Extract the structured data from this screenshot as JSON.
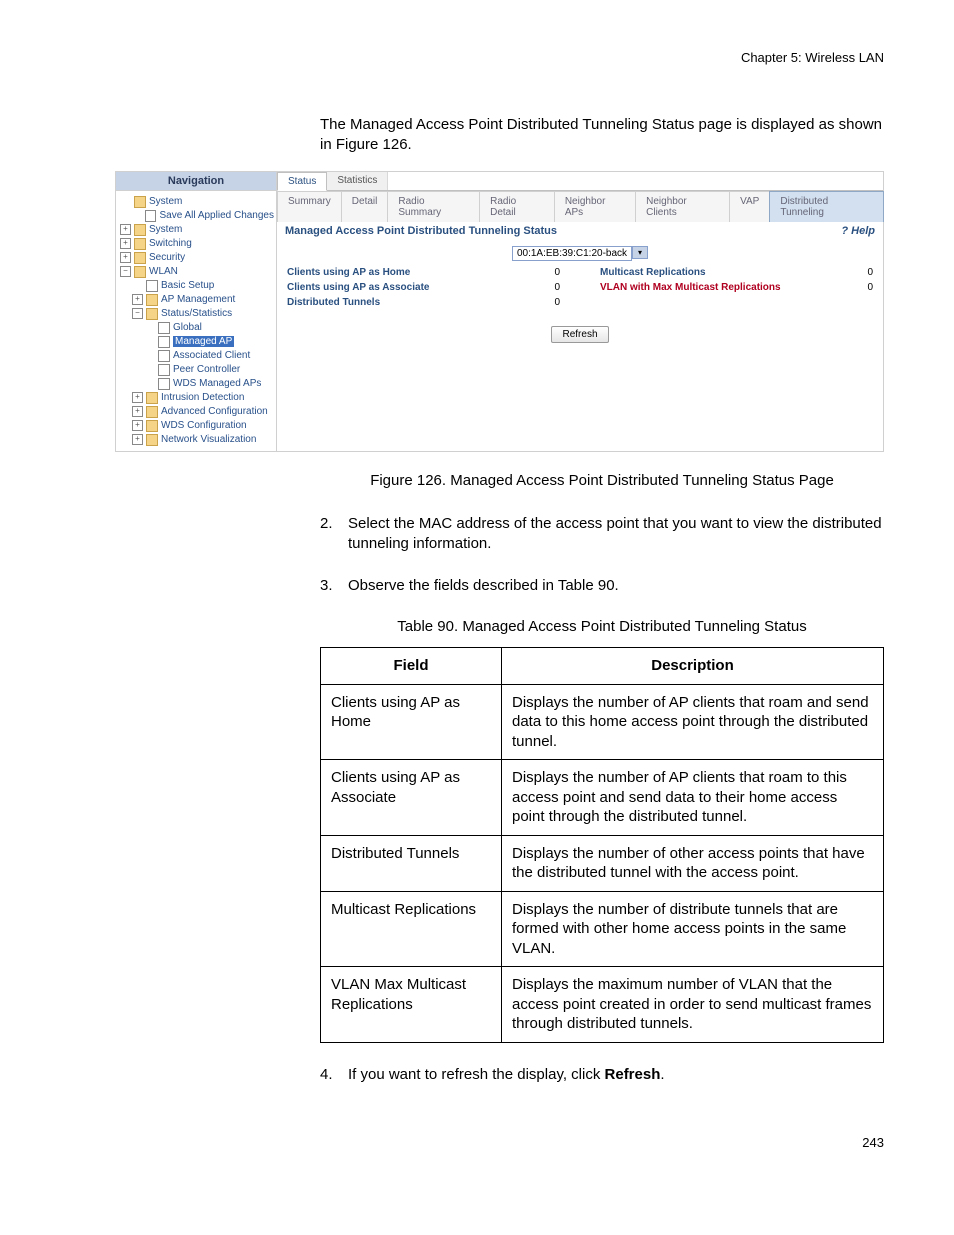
{
  "chapter_header": "Chapter 5: Wireless LAN",
  "intro": "The Managed Access Point Distributed Tunneling Status page is displayed as shown in Figure 126.",
  "screenshot": {
    "nav_title": "Navigation",
    "tree": [
      {
        "indent": 0,
        "expander": "",
        "icon": "folder-y",
        "label": "System",
        "style": ""
      },
      {
        "indent": 1,
        "expander": "",
        "icon": "doc-i",
        "label": "Save All Applied Changes",
        "style": ""
      },
      {
        "indent": 0,
        "expander": "+",
        "icon": "folder-y",
        "label": "System",
        "style": ""
      },
      {
        "indent": 0,
        "expander": "+",
        "icon": "folder-y",
        "label": "Switching",
        "style": ""
      },
      {
        "indent": 0,
        "expander": "+",
        "icon": "folder-y",
        "label": "Security",
        "style": ""
      },
      {
        "indent": 0,
        "expander": "−",
        "icon": "folder-o",
        "label": "WLAN",
        "style": ""
      },
      {
        "indent": 1,
        "expander": "",
        "icon": "doc-i",
        "label": "Basic Setup",
        "style": ""
      },
      {
        "indent": 1,
        "expander": "+",
        "icon": "folder-y",
        "label": "AP Management",
        "style": ""
      },
      {
        "indent": 1,
        "expander": "−",
        "icon": "folder-o",
        "label": "Status/Statistics",
        "style": ""
      },
      {
        "indent": 2,
        "expander": "",
        "icon": "doc-i",
        "label": "Global",
        "style": ""
      },
      {
        "indent": 2,
        "expander": "",
        "icon": "doc-i",
        "label": "Managed AP",
        "style": "hl"
      },
      {
        "indent": 2,
        "expander": "",
        "icon": "doc-i",
        "label": "Associated Client",
        "style": ""
      },
      {
        "indent": 2,
        "expander": "",
        "icon": "doc-i",
        "label": "Peer Controller",
        "style": ""
      },
      {
        "indent": 2,
        "expander": "",
        "icon": "doc-i",
        "label": "WDS Managed APs",
        "style": ""
      },
      {
        "indent": 1,
        "expander": "+",
        "icon": "folder-y",
        "label": "Intrusion Detection",
        "style": ""
      },
      {
        "indent": 1,
        "expander": "+",
        "icon": "folder-y",
        "label": "Advanced Configuration",
        "style": ""
      },
      {
        "indent": 1,
        "expander": "+",
        "icon": "folder-y",
        "label": "WDS Configuration",
        "style": ""
      },
      {
        "indent": 1,
        "expander": "+",
        "icon": "folder-y",
        "label": "Network Visualization",
        "style": ""
      }
    ],
    "tabs1": [
      {
        "label": "Status",
        "active": true
      },
      {
        "label": "Statistics",
        "active": false
      }
    ],
    "tabs2": [
      {
        "label": "Summary",
        "active": false
      },
      {
        "label": "Detail",
        "active": false
      },
      {
        "label": "Radio Summary",
        "active": false
      },
      {
        "label": "Radio Detail",
        "active": false
      },
      {
        "label": "Neighbor APs",
        "active": false
      },
      {
        "label": "Neighbor Clients",
        "active": false
      },
      {
        "label": "VAP",
        "active": false
      },
      {
        "label": "Distributed Tunneling",
        "active": true
      }
    ],
    "panel_title": "Managed Access Point Distributed Tunneling Status",
    "help": "? Help",
    "mac": "00:1A:EB:39:C1:20-back",
    "rows_left": [
      {
        "label": "Clients using AP as Home",
        "value": "0"
      },
      {
        "label": "Clients using AP as Associate",
        "value": "0"
      },
      {
        "label": "Distributed Tunnels",
        "value": "0"
      }
    ],
    "rows_right": [
      {
        "label": "Multicast Replications",
        "value": "0",
        "red": false
      },
      {
        "label": "VLAN with Max Multicast Replications",
        "value": "0",
        "red": true
      }
    ],
    "refresh": "Refresh"
  },
  "figure_caption": "Figure 126. Managed Access Point Distributed Tunneling Status Page",
  "step2_num": "2.",
  "step2": "Select the MAC address of the access point that you want to view the distributed tunneling information.",
  "step3_num": "3.",
  "step3": "Observe the fields described in Table 90.",
  "table_caption": "Table 90. Managed Access Point Distributed Tunneling Status",
  "table": {
    "headers": [
      "Field",
      "Description"
    ],
    "rows": [
      {
        "field": "Clients using AP as Home",
        "desc": "Displays the number of AP clients that roam and send data to this home access point through the distributed tunnel."
      },
      {
        "field": "Clients using AP as Associate",
        "desc": "Displays the number of AP clients that roam to this access point and send data to their home access point through the distributed tunnel."
      },
      {
        "field": "Distributed Tunnels",
        "desc": "Displays the number of other access points that have the distributed tunnel with the access point."
      },
      {
        "field": "Multicast Replications",
        "desc": "Displays the number of distribute tunnels that are formed with other home access points in the same VLAN."
      },
      {
        "field": "VLAN Max Multicast Replications",
        "desc": "Displays the maximum number of VLAN that the access point created in order to send multicast frames through distributed tunnels."
      }
    ]
  },
  "step4_num": "4.",
  "step4_pre": "If you want to refresh the display, click ",
  "step4_bold": "Refresh",
  "step4_post": ".",
  "page_number": "243"
}
